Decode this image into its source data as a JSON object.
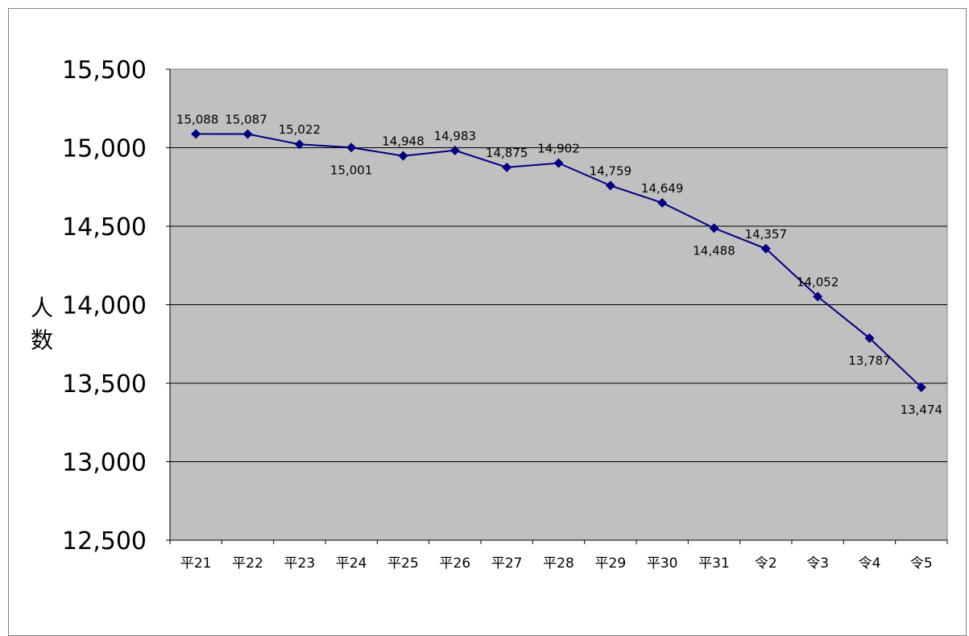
{
  "chart_data": {
    "type": "line",
    "title": "",
    "xlabel": "",
    "ylabel": "人数",
    "ylim": [
      12500,
      15500
    ],
    "yticks": [
      12500,
      13000,
      13500,
      14000,
      14500,
      15000,
      15500
    ],
    "ytick_labels": [
      "12,500",
      "13,000",
      "13,500",
      "14,000",
      "14,500",
      "15,000",
      "15,500"
    ],
    "categories": [
      "平21",
      "平22",
      "平23",
      "平24",
      "平25",
      "平26",
      "平27",
      "平28",
      "平29",
      "平30",
      "平31",
      "令2",
      "令3",
      "令4",
      "令5"
    ],
    "series": [
      {
        "values": [
          15088,
          15087,
          15022,
          15001,
          14948,
          14983,
          14875,
          14902,
          14759,
          14649,
          14488,
          14357,
          14052,
          13787,
          13474
        ],
        "data_labels": [
          "15,088",
          "15,087",
          "15,022",
          "15,001",
          "14,948",
          "14,983",
          "14,875",
          "14,902",
          "14,759",
          "14,649",
          "14,488",
          "14,357",
          "14,052",
          "13,787",
          "13,474"
        ],
        "color": "#000080",
        "marker": "diamond"
      }
    ],
    "grid": true,
    "plot_background": "#c0c0c0",
    "gridline_color": "#000000"
  }
}
